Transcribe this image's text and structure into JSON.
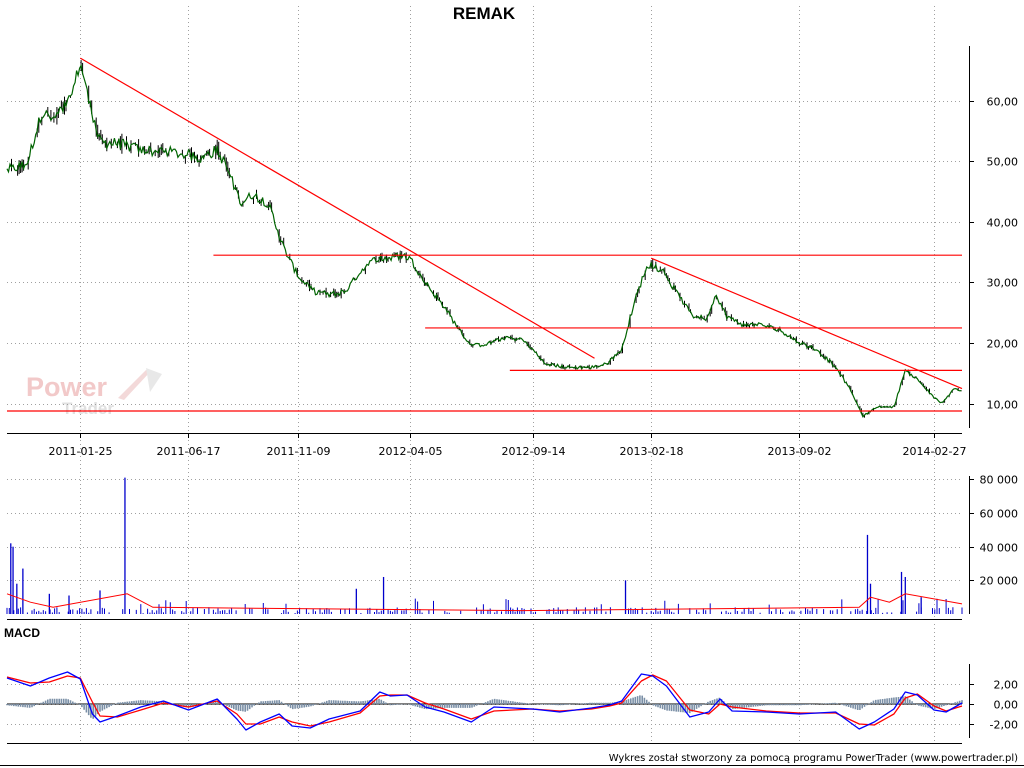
{
  "title": "REMAK",
  "footer": "Wykres został stworzony za pomocą programu PowerTrader (www.powertrader.pl)",
  "watermark": {
    "line1": "Power",
    "line2": "Trader"
  },
  "colors": {
    "price_line": "#006400",
    "trend_lines": "#ff0000",
    "volume_bars": "#0000cc",
    "volume_avg": "#ff0000",
    "macd_line": "#0000ff",
    "signal_line": "#ff0000",
    "histogram": "#7a8fa6",
    "grid": "#a0a0a0"
  },
  "chart_data": [
    {
      "type": "line",
      "panel": "price",
      "title": "REMAK",
      "x_ticks": [
        "2011-01-25",
        "2011-06-17",
        "2011-11-09",
        "2012-04-05",
        "2012-09-14",
        "2013-02-18",
        "2013-09-02",
        "2014-02-27"
      ],
      "y_ticks": [
        "10,00",
        "20,00",
        "30,00",
        "40,00",
        "50,00",
        "60,00"
      ],
      "ylim": [
        6,
        69
      ],
      "series": [
        {
          "values": [
            [
              "2010-10-20",
              48.5
            ],
            [
              "2010-11-15",
              49.5
            ],
            [
              "2010-12-05",
              58
            ],
            [
              "2010-12-20",
              57
            ],
            [
              "2011-01-12",
              60
            ],
            [
              "2011-01-25",
              66.5
            ],
            [
              "2011-02-05",
              60
            ],
            [
              "2011-02-20",
              53
            ],
            [
              "2011-03-15",
              53
            ],
            [
              "2011-04-10",
              52
            ],
            [
              "2011-05-05",
              51.5
            ],
            [
              "2011-05-25",
              51.5
            ],
            [
              "2011-06-17",
              51
            ],
            [
              "2011-07-05",
              50.5
            ],
            [
              "2011-07-25",
              52
            ],
            [
              "2011-08-10",
              48
            ],
            [
              "2011-08-25",
              43
            ],
            [
              "2011-09-10",
              44.5
            ],
            [
              "2011-10-01",
              43
            ],
            [
              "2011-10-20",
              36
            ],
            [
              "2011-11-09",
              31
            ],
            [
              "2011-12-01",
              28.5
            ],
            [
              "2011-12-20",
              28
            ],
            [
              "2012-01-10",
              28.5
            ],
            [
              "2012-02-01",
              32
            ],
            [
              "2012-02-20",
              34
            ],
            [
              "2012-03-10",
              34
            ],
            [
              "2012-03-25",
              34.5
            ],
            [
              "2012-04-05",
              34
            ],
            [
              "2012-04-25",
              30
            ],
            [
              "2012-05-20",
              26
            ],
            [
              "2012-06-10",
              22
            ],
            [
              "2012-06-25",
              19.5
            ],
            [
              "2012-07-20",
              20
            ],
            [
              "2012-08-10",
              21
            ],
            [
              "2012-09-01",
              20.5
            ],
            [
              "2012-09-14",
              19
            ],
            [
              "2012-10-01",
              16.5
            ],
            [
              "2012-11-01",
              16
            ],
            [
              "2012-12-01",
              16
            ],
            [
              "2012-12-20",
              16.5
            ],
            [
              "2013-01-10",
              19
            ],
            [
              "2013-01-25",
              26
            ],
            [
              "2013-02-10",
              32
            ],
            [
              "2013-02-18",
              33
            ],
            [
              "2013-03-05",
              32
            ],
            [
              "2013-03-25",
              28
            ],
            [
              "2013-04-15",
              24.5
            ],
            [
              "2013-05-01",
              24
            ],
            [
              "2013-05-15",
              28
            ],
            [
              "2013-05-28",
              24.5
            ],
            [
              "2013-06-20",
              23
            ],
            [
              "2013-07-15",
              23
            ],
            [
              "2013-08-10",
              22
            ],
            [
              "2013-09-02",
              20
            ],
            [
              "2013-09-25",
              19
            ],
            [
              "2013-10-20",
              16
            ],
            [
              "2013-11-10",
              12
            ],
            [
              "2013-11-25",
              8
            ],
            [
              "2013-12-15",
              9.5
            ],
            [
              "2014-01-05",
              9.5
            ],
            [
              "2014-01-20",
              15.5
            ],
            [
              "2014-02-05",
              14
            ],
            [
              "2014-02-27",
              11
            ],
            [
              "2014-03-10",
              10
            ],
            [
              "2014-03-25",
              12.5
            ],
            [
              "2014-04-05",
              12
            ]
          ]
        }
      ],
      "trend_lines": [
        {
          "from": [
            "2011-01-25",
            67
          ],
          "to": [
            "2012-12-05",
            17.5
          ]
        },
        {
          "from": [
            "2013-02-18",
            34
          ],
          "to": [
            "2014-04-05",
            12.5
          ]
        },
        {
          "from": [
            "2011-07-20",
            34.5
          ],
          "to": [
            "2014-04-05",
            34.5
          ]
        },
        {
          "from": [
            "2012-04-25",
            22.5
          ],
          "to": [
            "2014-04-05",
            22.5
          ]
        },
        {
          "from": [
            "2012-08-15",
            15.5
          ],
          "to": [
            "2014-04-05",
            15.5
          ]
        },
        {
          "from": [
            "2010-10-20",
            8.8
          ],
          "to": [
            "2014-04-05",
            8.8
          ]
        }
      ]
    },
    {
      "type": "bar",
      "panel": "volume",
      "y_ticks": [
        "20 000",
        "40 000",
        "60 000",
        "80 000"
      ],
      "ylim": [
        0,
        82000
      ],
      "spikes": [
        [
          "2010-10-25",
          42000
        ],
        [
          "2010-10-28",
          40000
        ],
        [
          "2010-11-02",
          18000
        ],
        [
          "2010-11-10",
          27000
        ],
        [
          "2010-12-15",
          12000
        ],
        [
          "2011-01-10",
          11000
        ],
        [
          "2011-02-20",
          14000
        ],
        [
          "2011-03-25",
          81000
        ],
        [
          "2012-01-25",
          15000
        ],
        [
          "2012-03-01",
          22000
        ],
        [
          "2013-01-15",
          20000
        ],
        [
          "2013-12-01",
          47000
        ],
        [
          "2013-12-05",
          18000
        ],
        [
          "2014-01-15",
          25000
        ],
        [
          "2014-01-20",
          22000
        ],
        [
          "2014-02-10",
          10000
        ]
      ],
      "average": [
        [
          "2010-10-20",
          12000
        ],
        [
          "2010-11-20",
          7000
        ],
        [
          "2010-12-20",
          4000
        ],
        [
          "2011-03-28",
          12000
        ],
        [
          "2011-05-01",
          4000
        ],
        [
          "2012-09-01",
          2000
        ],
        [
          "2013-11-20",
          4000
        ],
        [
          "2013-12-05",
          10000
        ],
        [
          "2013-12-30",
          7000
        ],
        [
          "2014-01-20",
          12000
        ],
        [
          "2014-04-05",
          6000
        ]
      ]
    },
    {
      "type": "line",
      "panel": "MACD",
      "label": "MACD",
      "y_ticks": [
        "-2,00",
        "0,00",
        "2,00"
      ],
      "ylim": [
        -3.4,
        4.0
      ],
      "series": [
        {
          "values": [
            [
              "2010-10-20",
              2.6
            ],
            [
              "2010-11-20",
              1.8
            ],
            [
              "2010-12-15",
              2.6
            ],
            [
              "2011-01-08",
              3.2
            ],
            [
              "2011-01-25",
              2.5
            ],
            [
              "2011-02-10",
              -1.0
            ],
            [
              "2011-02-20",
              -1.8
            ],
            [
              "2011-03-15",
              -1.2
            ],
            [
              "2011-04-15",
              -0.3
            ],
            [
              "2011-05-15",
              0.3
            ],
            [
              "2011-06-17",
              -0.6
            ],
            [
              "2011-07-25",
              0.5
            ],
            [
              "2011-08-20",
              -1.5
            ],
            [
              "2011-09-01",
              -2.6
            ],
            [
              "2011-09-20",
              -1.8
            ],
            [
              "2011-10-15",
              -1.0
            ],
            [
              "2011-11-01",
              -2.2
            ],
            [
              "2011-11-25",
              -2.4
            ],
            [
              "2011-12-20",
              -1.5
            ],
            [
              "2012-01-30",
              -0.7
            ],
            [
              "2012-02-25",
              1.2
            ],
            [
              "2012-03-10",
              0.8
            ],
            [
              "2012-04-01",
              0.9
            ],
            [
              "2012-04-25",
              -0.3
            ],
            [
              "2012-05-20",
              -0.8
            ],
            [
              "2012-06-25",
              -1.8
            ],
            [
              "2012-07-25",
              -0.3
            ],
            [
              "2012-09-14",
              -0.5
            ],
            [
              "2012-10-20",
              -0.8
            ],
            [
              "2012-12-01",
              -0.4
            ],
            [
              "2012-12-25",
              -0.1
            ],
            [
              "2013-01-10",
              0.3
            ],
            [
              "2013-02-05",
              3.0
            ],
            [
              "2013-02-20",
              2.8
            ],
            [
              "2013-03-10",
              1.8
            ],
            [
              "2013-04-10",
              -1.3
            ],
            [
              "2013-05-05",
              -0.8
            ],
            [
              "2013-05-20",
              0.5
            ],
            [
              "2013-06-05",
              -0.7
            ],
            [
              "2013-07-20",
              -0.8
            ],
            [
              "2013-09-02",
              -1.0
            ],
            [
              "2013-10-20",
              -0.8
            ],
            [
              "2013-11-20",
              -2.5
            ],
            [
              "2013-12-10",
              -1.8
            ],
            [
              "2014-01-05",
              -0.5
            ],
            [
              "2014-01-20",
              1.2
            ],
            [
              "2014-02-05",
              0.9
            ],
            [
              "2014-02-27",
              -0.6
            ],
            [
              "2014-03-15",
              -0.8
            ],
            [
              "2014-04-05",
              0.1
            ]
          ]
        },
        {
          "values": [
            [
              "2010-10-20",
              2.7
            ],
            [
              "2010-11-20",
              2.1
            ],
            [
              "2010-12-15",
              2.2
            ],
            [
              "2011-01-08",
              2.8
            ],
            [
              "2011-01-25",
              2.6
            ],
            [
              "2011-02-10",
              0.2
            ],
            [
              "2011-02-20",
              -1.2
            ],
            [
              "2011-03-15",
              -1.3
            ],
            [
              "2011-04-15",
              -0.6
            ],
            [
              "2011-05-15",
              0.1
            ],
            [
              "2011-06-17",
              -0.3
            ],
            [
              "2011-07-25",
              0.3
            ],
            [
              "2011-08-20",
              -1.0
            ],
            [
              "2011-09-01",
              -2.0
            ],
            [
              "2011-09-20",
              -2.0
            ],
            [
              "2011-10-15",
              -1.3
            ],
            [
              "2011-11-01",
              -1.8
            ],
            [
              "2011-11-25",
              -2.2
            ],
            [
              "2011-12-20",
              -1.8
            ],
            [
              "2012-01-30",
              -0.9
            ],
            [
              "2012-02-25",
              0.8
            ],
            [
              "2012-03-10",
              0.9
            ],
            [
              "2012-04-01",
              0.9
            ],
            [
              "2012-04-25",
              0.1
            ],
            [
              "2012-05-20",
              -0.5
            ],
            [
              "2012-06-25",
              -1.5
            ],
            [
              "2012-07-25",
              -0.7
            ],
            [
              "2012-09-14",
              -0.5
            ],
            [
              "2012-10-20",
              -0.7
            ],
            [
              "2012-12-01",
              -0.5
            ],
            [
              "2012-12-25",
              -0.2
            ],
            [
              "2013-01-10",
              0.1
            ],
            [
              "2013-02-05",
              2.3
            ],
            [
              "2013-02-20",
              2.9
            ],
            [
              "2013-03-10",
              2.3
            ],
            [
              "2013-04-10",
              -0.6
            ],
            [
              "2013-05-05",
              -1.0
            ],
            [
              "2013-05-20",
              0.0
            ],
            [
              "2013-06-05",
              -0.3
            ],
            [
              "2013-07-20",
              -0.7
            ],
            [
              "2013-09-02",
              -0.9
            ],
            [
              "2013-10-20",
              -0.9
            ],
            [
              "2013-11-20",
              -2.0
            ],
            [
              "2013-12-10",
              -2.1
            ],
            [
              "2014-01-05",
              -1.0
            ],
            [
              "2014-01-20",
              0.6
            ],
            [
              "2014-02-05",
              1.0
            ],
            [
              "2014-02-27",
              -0.2
            ],
            [
              "2014-03-15",
              -0.7
            ],
            [
              "2014-04-05",
              -0.2
            ]
          ]
        }
      ]
    }
  ]
}
